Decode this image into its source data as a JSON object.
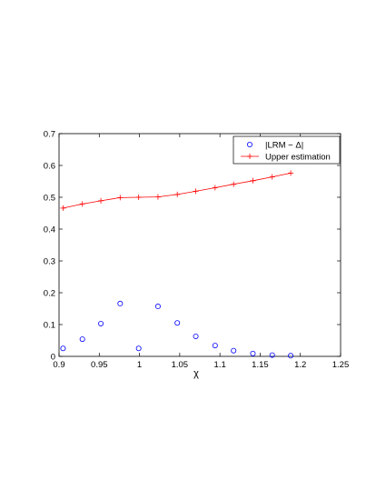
{
  "chart_data": {
    "type": "scatter",
    "title": "",
    "xlabel": "χ",
    "ylabel": "",
    "xlim": [
      0.9,
      1.25
    ],
    "ylim": [
      0,
      0.7
    ],
    "x_ticks": [
      "0.9",
      "0.95",
      "1",
      "1.05",
      "1.1",
      "1.15",
      "1.2",
      "1.25"
    ],
    "y_ticks": [
      "0",
      "0.1",
      "0.2",
      "0.3",
      "0.4",
      "0.5",
      "0.6",
      "0.7"
    ],
    "grid": false,
    "legend_position": "top-right",
    "series": [
      {
        "name": "|LRM − Δ|",
        "kind": "scatter",
        "marker": "circle",
        "color": "#0000ff",
        "x": [
          0.905,
          0.929,
          0.952,
          0.976,
          0.999,
          1.023,
          1.047,
          1.07,
          1.094,
          1.117,
          1.141,
          1.165,
          1.188
        ],
        "y": [
          0.025,
          0.054,
          0.103,
          0.166,
          0.025,
          0.157,
          0.105,
          0.063,
          0.034,
          0.018,
          0.009,
          0.004,
          0.002
        ]
      },
      {
        "name": "Upper estimation",
        "kind": "line",
        "marker": "plus",
        "color": "#ff0000",
        "x": [
          0.905,
          0.929,
          0.952,
          0.976,
          0.999,
          1.023,
          1.047,
          1.07,
          1.094,
          1.117,
          1.141,
          1.165,
          1.188
        ],
        "y": [
          0.466,
          0.479,
          0.489,
          0.499,
          0.5,
          0.501,
          0.509,
          0.519,
          0.53,
          0.541,
          0.552,
          0.564,
          0.576
        ]
      }
    ]
  }
}
